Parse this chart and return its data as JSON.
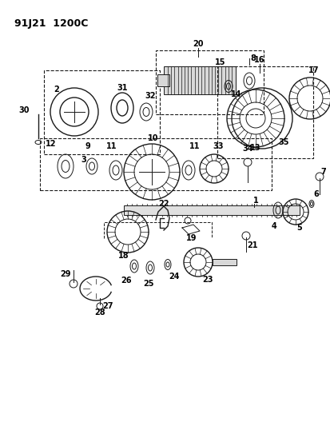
{
  "title": "91J21  1200C",
  "bg_color": "#ffffff",
  "fig_width": 4.14,
  "fig_height": 5.33,
  "dpi": 100
}
